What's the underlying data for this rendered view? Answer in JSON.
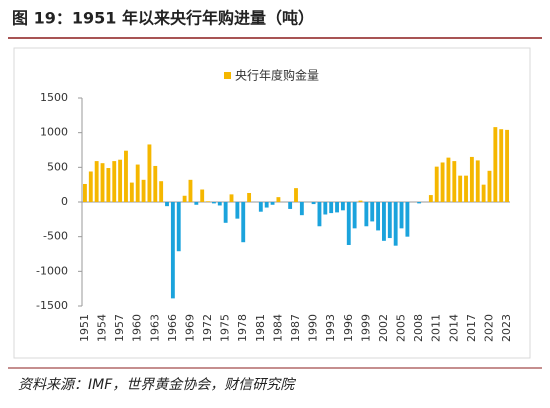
{
  "chart_data": {
    "type": "bar",
    "title": "图 19：1951 年以来央行年购进量（吨）",
    "source": "资料来源：IMF，世界黄金协会，财信研究院",
    "categories": [
      "1951",
      null,
      null,
      "1954",
      null,
      null,
      "1957",
      null,
      null,
      "1960",
      null,
      null,
      "1963",
      null,
      null,
      "1966",
      null,
      null,
      "1969",
      null,
      null,
      "1972",
      null,
      null,
      "1975",
      null,
      null,
      "1978",
      null,
      null,
      "1981",
      null,
      null,
      "1984",
      null,
      null,
      "1987",
      null,
      null,
      "1990",
      null,
      null,
      "1993",
      null,
      null,
      "1996",
      null,
      null,
      "1999",
      null,
      null,
      "2002",
      null,
      null,
      "2005",
      null,
      null,
      "2008",
      null,
      null,
      "2011",
      null,
      null,
      "2014",
      null,
      null,
      "2017",
      null,
      null,
      "2020",
      null,
      null,
      "2023"
    ],
    "series": [
      {
        "name": "央行年度购金量",
        "color": "#f5b700",
        "negative_color": "#1ba3dc",
        "values": [
          260,
          440,
          590,
          560,
          490,
          590,
          610,
          740,
          280,
          540,
          320,
          830,
          520,
          300,
          -60,
          -1390,
          -710,
          90,
          320,
          -40,
          180,
          10,
          -20,
          -50,
          -300,
          110,
          -240,
          -580,
          130,
          0,
          -140,
          -80,
          -40,
          70,
          0,
          -100,
          200,
          -190,
          0,
          -30,
          -350,
          -180,
          -160,
          -150,
          -120,
          -620,
          -380,
          20,
          -350,
          -280,
          -410,
          -560,
          -520,
          -630,
          -380,
          -500,
          0,
          -20,
          0,
          100,
          510,
          570,
          640,
          590,
          380,
          380,
          650,
          600,
          250,
          450,
          1080,
          1050,
          1040
        ]
      }
    ],
    "ylim": [
      -1500,
      1500
    ],
    "yticks": [
      -1500,
      -1000,
      -500,
      0,
      500,
      1000,
      1500
    ],
    "legend": "top",
    "grid": false
  }
}
